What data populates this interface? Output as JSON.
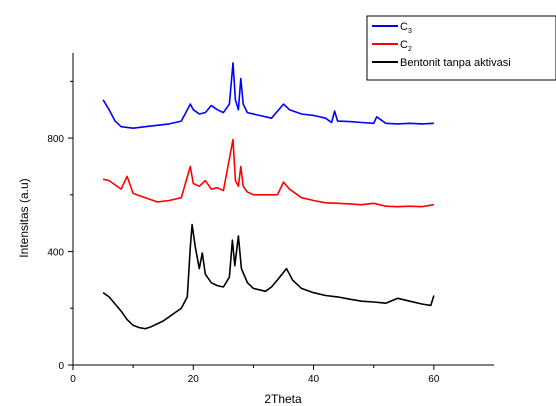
{
  "chart_data": {
    "type": "line",
    "title": "",
    "xlabel": "2Theta",
    "ylabel": "Intensitas (a.u)",
    "xlim": [
      0,
      70
    ],
    "ylim": [
      0,
      1100
    ],
    "xticks": [
      0,
      20,
      40,
      60
    ],
    "yticks": [
      0,
      400,
      800
    ],
    "grid": false,
    "legend_position": "top-right",
    "series": [
      {
        "name": "C",
        "name_subscript": "3",
        "color": "#0000ff",
        "points": [
          [
            5,
            935
          ],
          [
            6,
            900
          ],
          [
            7,
            860
          ],
          [
            8,
            840
          ],
          [
            10,
            835
          ],
          [
            12,
            840
          ],
          [
            14,
            845
          ],
          [
            16,
            850
          ],
          [
            18,
            860
          ],
          [
            19.5,
            920
          ],
          [
            20,
            900
          ],
          [
            21,
            885
          ],
          [
            22,
            890
          ],
          [
            23,
            915
          ],
          [
            24,
            900
          ],
          [
            25,
            890
          ],
          [
            26,
            920
          ],
          [
            26.6,
            1065
          ],
          [
            27,
            935
          ],
          [
            27.5,
            900
          ],
          [
            27.9,
            1010
          ],
          [
            28.3,
            920
          ],
          [
            29,
            890
          ],
          [
            31,
            880
          ],
          [
            33,
            870
          ],
          [
            35,
            920
          ],
          [
            36,
            900
          ],
          [
            38,
            885
          ],
          [
            40,
            880
          ],
          [
            42,
            870
          ],
          [
            43,
            855
          ],
          [
            43.5,
            895
          ],
          [
            44,
            860
          ],
          [
            46,
            858
          ],
          [
            48,
            855
          ],
          [
            50,
            852
          ],
          [
            50.5,
            875
          ],
          [
            52,
            852
          ],
          [
            54,
            850
          ],
          [
            56,
            852
          ],
          [
            58,
            850
          ],
          [
            60,
            852
          ]
        ]
      },
      {
        "name": "C",
        "name_subscript": "2",
        "color": "#ff0000",
        "points": [
          [
            5,
            655
          ],
          [
            6,
            650
          ],
          [
            7,
            635
          ],
          [
            8,
            620
          ],
          [
            9,
            665
          ],
          [
            10,
            605
          ],
          [
            12,
            590
          ],
          [
            14,
            575
          ],
          [
            16,
            580
          ],
          [
            18,
            590
          ],
          [
            19.5,
            700
          ],
          [
            20,
            640
          ],
          [
            21,
            630
          ],
          [
            22,
            650
          ],
          [
            23,
            620
          ],
          [
            24,
            625
          ],
          [
            25,
            615
          ],
          [
            26.6,
            795
          ],
          [
            27,
            650
          ],
          [
            27.5,
            630
          ],
          [
            27.9,
            700
          ],
          [
            28.3,
            630
          ],
          [
            29,
            610
          ],
          [
            30,
            600
          ],
          [
            32,
            600
          ],
          [
            34,
            600
          ],
          [
            35,
            645
          ],
          [
            36,
            620
          ],
          [
            38,
            590
          ],
          [
            40,
            580
          ],
          [
            42,
            572
          ],
          [
            44,
            570
          ],
          [
            46,
            568
          ],
          [
            48,
            565
          ],
          [
            50,
            570
          ],
          [
            52,
            560
          ],
          [
            54,
            558
          ],
          [
            56,
            560
          ],
          [
            58,
            558
          ],
          [
            60,
            565
          ]
        ]
      },
      {
        "name": "Bentonit tanpa aktivasi",
        "name_subscript": "",
        "color": "#000000",
        "points": [
          [
            5,
            255
          ],
          [
            6,
            240
          ],
          [
            7,
            215
          ],
          [
            8,
            190
          ],
          [
            9,
            160
          ],
          [
            10,
            140
          ],
          [
            11,
            132
          ],
          [
            12,
            128
          ],
          [
            13,
            135
          ],
          [
            14,
            145
          ],
          [
            15,
            155
          ],
          [
            16,
            170
          ],
          [
            17,
            185
          ],
          [
            18,
            200
          ],
          [
            19,
            240
          ],
          [
            19.5,
            415
          ],
          [
            19.8,
            495
          ],
          [
            20.3,
            420
          ],
          [
            21,
            340
          ],
          [
            21.5,
            395
          ],
          [
            22,
            320
          ],
          [
            23,
            290
          ],
          [
            24,
            280
          ],
          [
            25,
            275
          ],
          [
            26,
            310
          ],
          [
            26.5,
            440
          ],
          [
            26.9,
            350
          ],
          [
            27.5,
            455
          ],
          [
            28,
            340
          ],
          [
            29,
            290
          ],
          [
            30,
            270
          ],
          [
            31,
            265
          ],
          [
            32,
            260
          ],
          [
            33,
            275
          ],
          [
            34,
            300
          ],
          [
            35.5,
            340
          ],
          [
            36.5,
            300
          ],
          [
            38,
            270
          ],
          [
            40,
            255
          ],
          [
            42,
            245
          ],
          [
            44,
            240
          ],
          [
            46,
            232
          ],
          [
            48,
            225
          ],
          [
            50,
            222
          ],
          [
            52,
            218
          ],
          [
            54,
            235
          ],
          [
            56,
            225
          ],
          [
            58,
            215
          ],
          [
            59.5,
            210
          ],
          [
            60,
            245
          ]
        ]
      }
    ]
  }
}
